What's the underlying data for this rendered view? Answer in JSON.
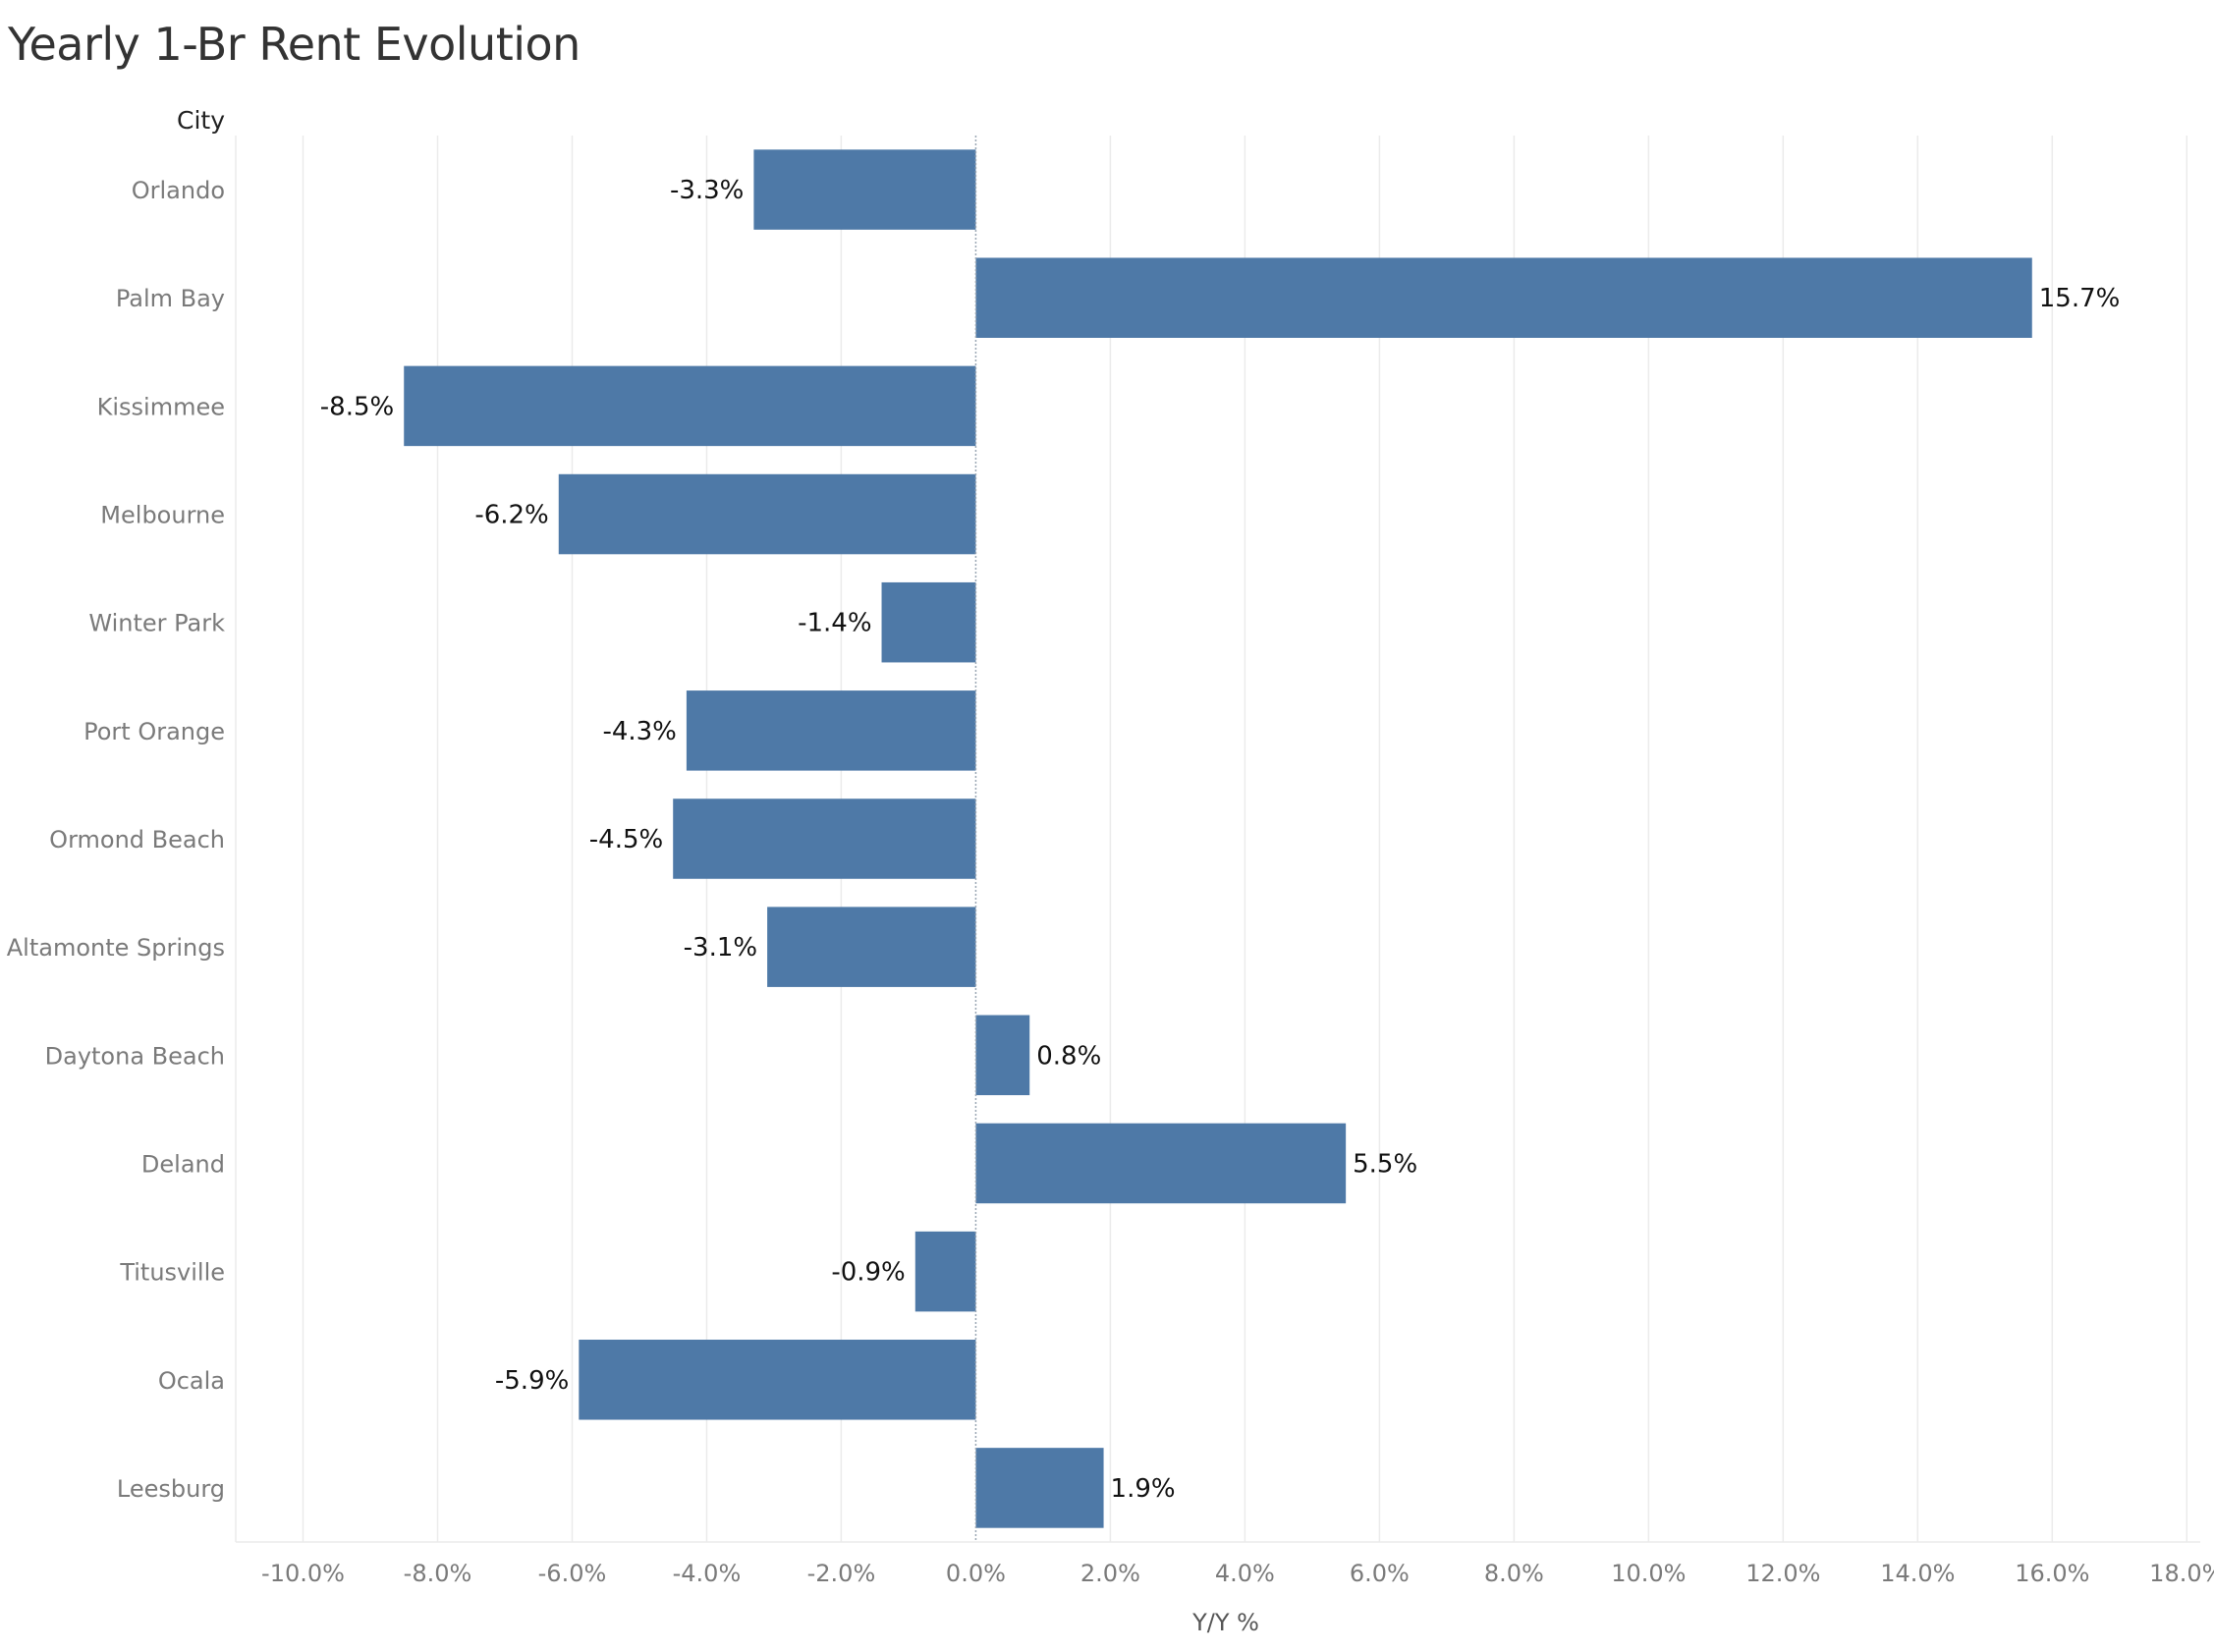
{
  "chart_data": {
    "type": "bar",
    "orientation": "horizontal",
    "title": "Yearly 1-Br Rent Evolution",
    "row_header": "City",
    "xlabel": "Y/Y %",
    "categories": [
      "Orlando",
      "Palm Bay",
      "Kissimmee",
      "Melbourne",
      "Winter Park",
      "Port Orange",
      "Ormond Beach",
      "Altamonte Springs",
      "Daytona Beach",
      "Deland",
      "Titusville",
      "Ocala",
      "Leesburg"
    ],
    "values": [
      -3.3,
      15.7,
      -8.5,
      -6.2,
      -1.4,
      -4.3,
      -4.5,
      -3.1,
      0.8,
      5.5,
      -0.9,
      -5.9,
      1.9
    ],
    "data_labels": [
      "-3.3%",
      "15.7%",
      "-8.5%",
      "-6.2%",
      "-1.4%",
      "-4.3%",
      "-4.5%",
      "-3.1%",
      "0.8%",
      "5.5%",
      "-0.9%",
      "-5.9%",
      "1.9%"
    ],
    "xlim": [
      -11,
      18.2
    ],
    "xticks": [
      -10,
      -8,
      -6,
      -4,
      -2,
      0,
      2,
      4,
      6,
      8,
      10,
      12,
      14,
      16,
      18
    ],
    "xtick_labels": [
      "-10.0%",
      "-8.0%",
      "-6.0%",
      "-4.0%",
      "-2.0%",
      "0.0%",
      "2.0%",
      "4.0%",
      "6.0%",
      "8.0%",
      "10.0%",
      "12.0%",
      "14.0%",
      "16.0%",
      "18.0%"
    ],
    "grid": true,
    "bar_color": "#4e79a7"
  }
}
